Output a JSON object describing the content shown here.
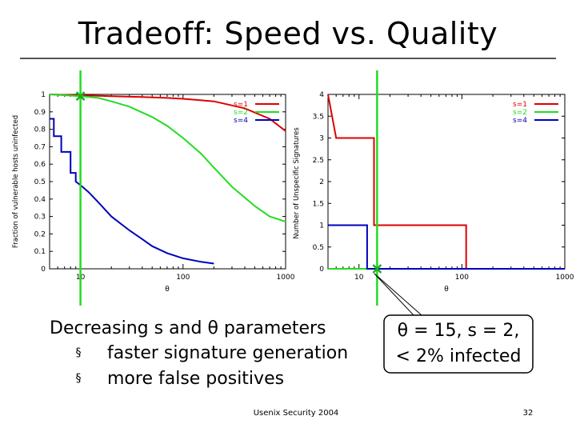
{
  "slide": {
    "title": "Tradeoff: Speed vs. Quality",
    "bullets_heading": "Decreasing s and θ parameters",
    "bullet_marker": "§",
    "bullets": [
      "faster signature generation",
      "more false positives"
    ],
    "callout_lines": [
      "θ = 15, s = 2,",
      "< 2% infected"
    ],
    "footer": "Usenix Security 2004",
    "page_number": "32"
  },
  "chart_data": [
    {
      "type": "line",
      "xscale": "log",
      "xlim": [
        5,
        1000
      ],
      "ylim": [
        0,
        1
      ],
      "xticks": [
        10,
        100,
        1000
      ],
      "xtick_labels": [
        "10",
        "100",
        "1000"
      ],
      "yticks": [
        0,
        0.1,
        0.2,
        0.3,
        0.4,
        0.5,
        0.6,
        0.7,
        0.8,
        0.9,
        1
      ],
      "ytick_labels": [
        "0",
        "0.1",
        "0.2",
        "0.3",
        "0.4",
        "0.5",
        "0.6",
        "0.7",
        "0.8",
        "0.9",
        "1"
      ],
      "xlabel": "θ",
      "ylabel": "Fraction of vulnerable hosts uninfected",
      "legend_position": "top-right",
      "marker": {
        "x": 10,
        "y": 0.99
      },
      "series": [
        {
          "name": "s=1",
          "color": "#dd0000",
          "x": [
            5,
            10,
            20,
            40,
            70,
            100,
            200,
            400,
            700,
            1000
          ],
          "y": [
            1.0,
            0.995,
            0.99,
            0.985,
            0.98,
            0.975,
            0.96,
            0.92,
            0.86,
            0.79
          ]
        },
        {
          "name": "s=2",
          "color": "#22dd22",
          "x": [
            5,
            10,
            15,
            20,
            30,
            50,
            70,
            100,
            150,
            200,
            300,
            500,
            700,
            1000
          ],
          "y": [
            1.0,
            0.99,
            0.98,
            0.96,
            0.93,
            0.87,
            0.82,
            0.75,
            0.66,
            0.58,
            0.47,
            0.36,
            0.3,
            0.27
          ]
        },
        {
          "name": "s=4",
          "color": "#0000bb",
          "x": [
            5,
            5.5,
            5.5,
            6.5,
            6.5,
            8,
            8,
            9,
            9,
            10,
            12,
            15,
            20,
            30,
            40,
            50,
            70,
            100,
            150,
            200
          ],
          "y": [
            0.86,
            0.86,
            0.76,
            0.76,
            0.67,
            0.67,
            0.55,
            0.55,
            0.5,
            0.48,
            0.44,
            0.38,
            0.3,
            0.22,
            0.17,
            0.13,
            0.09,
            0.06,
            0.04,
            0.03
          ]
        }
      ]
    },
    {
      "type": "line",
      "xscale": "log",
      "xlim": [
        5,
        1000
      ],
      "ylim": [
        0,
        4
      ],
      "xticks": [
        10,
        100,
        1000
      ],
      "xtick_labels": [
        "10",
        "100",
        "1000"
      ],
      "yticks": [
        0,
        0.5,
        1,
        1.5,
        2,
        2.5,
        3,
        3.5,
        4
      ],
      "ytick_labels": [
        "0",
        "0.5",
        "1",
        "1.5",
        "2",
        "2.5",
        "3",
        "3.5",
        "4"
      ],
      "xlabel": "θ",
      "ylabel": "Number of Unspecific Signatures",
      "legend_position": "top-right",
      "marker": {
        "x": 15,
        "y": 0
      },
      "series": [
        {
          "name": "s=1",
          "color": "#dd0000",
          "x": [
            5,
            6,
            6,
            14,
            14,
            110,
            110,
            1000
          ],
          "y": [
            4,
            3,
            3,
            3,
            1,
            1,
            0,
            0
          ]
        },
        {
          "name": "s=2",
          "color": "#22dd22",
          "x": [
            5,
            14,
            14,
            1000
          ],
          "y": [
            0,
            0,
            0,
            0
          ]
        },
        {
          "name": "s=4",
          "color": "#0000bb",
          "x": [
            5,
            12,
            12,
            1000
          ],
          "y": [
            1,
            1,
            0,
            0
          ]
        }
      ]
    }
  ]
}
